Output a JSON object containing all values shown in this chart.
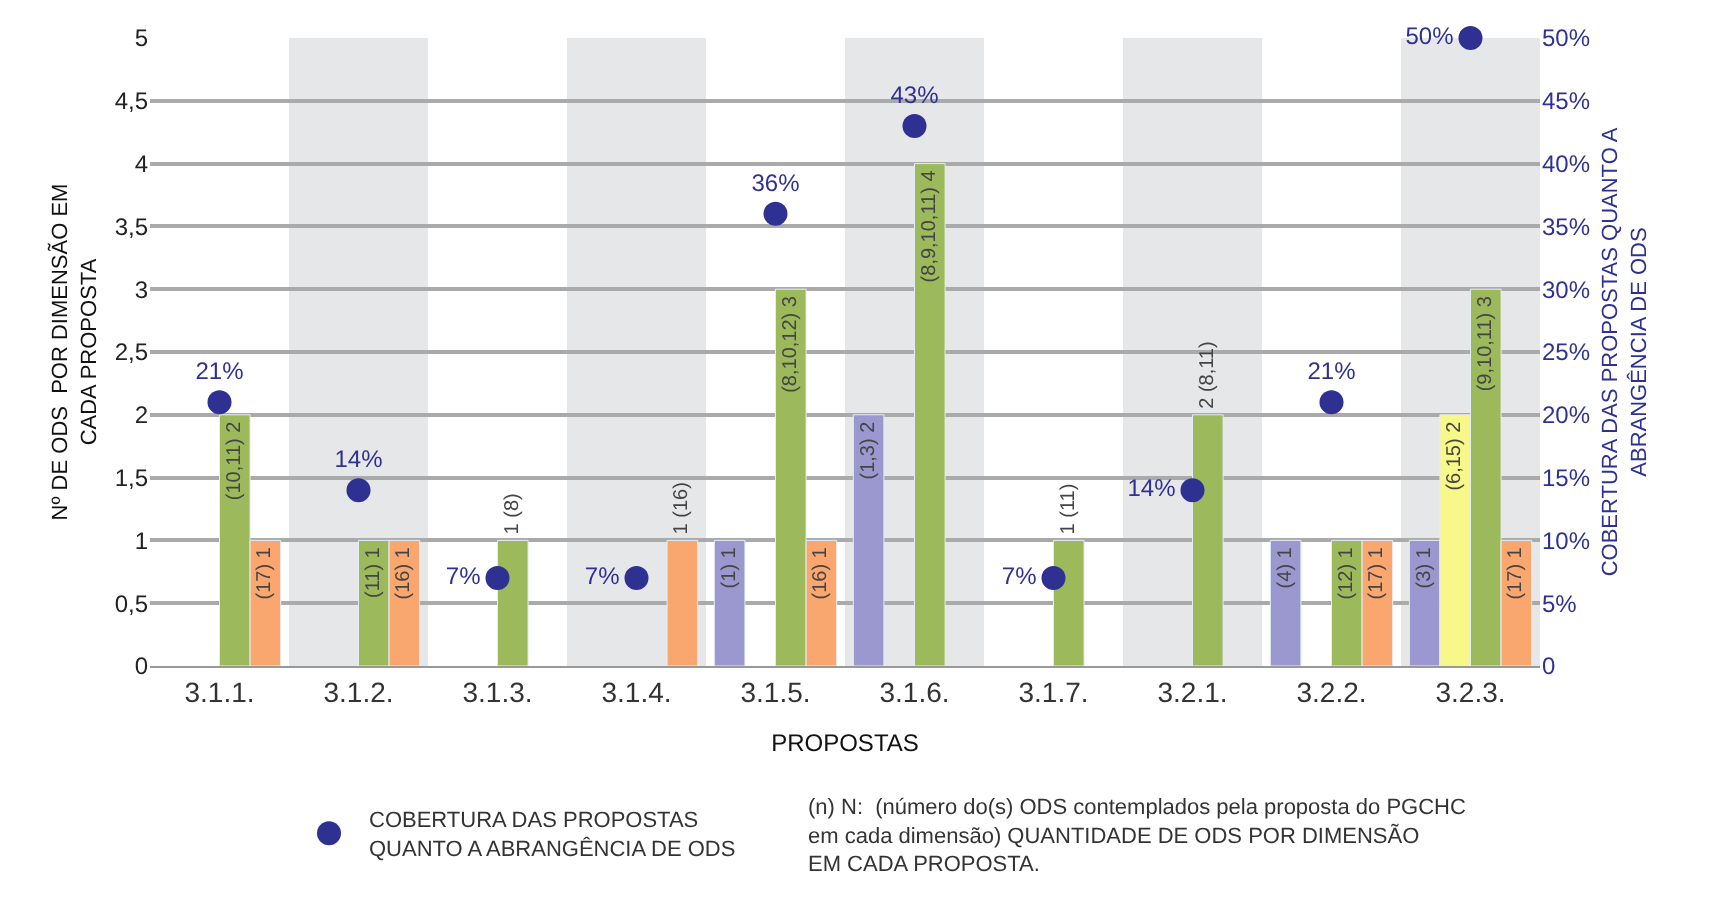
{
  "chart_data": {
    "type": "bar",
    "xlabel": "PROPOSTAS",
    "ylabel": "Nº DE ODS  POR DIMENSÃO EM\nCADA PROPOSTA",
    "y2label": "COBERTURA DAS PROPOSTAS QUANTO A\nABRANGÊNCIA DE ODS",
    "categories": [
      "3.1.1.",
      "3.1.2.",
      "3.1.3.",
      "3.1.4.",
      "3.1.5.",
      "3.1.6.",
      "3.1.7.",
      "3.2.1.",
      "3.2.2.",
      "3.2.3."
    ],
    "series": [
      {
        "color": "#9b97cf",
        "values": [
          null,
          null,
          null,
          null,
          1,
          2,
          null,
          null,
          1,
          1
        ],
        "value_labels": [
          null,
          null,
          null,
          null,
          "(1) 1",
          "(1,3) 2",
          null,
          null,
          "(4) 1",
          "(3) 1"
        ]
      },
      {
        "color": "#f8f78a",
        "values": [
          null,
          null,
          null,
          null,
          null,
          null,
          null,
          null,
          null,
          2
        ],
        "value_labels": [
          null,
          null,
          null,
          null,
          null,
          null,
          null,
          null,
          null,
          "(6,15) 2"
        ]
      },
      {
        "color": "#9cba5b",
        "values": [
          2,
          1,
          1,
          null,
          3,
          4,
          1,
          2,
          1,
          3
        ],
        "value_labels": [
          "(10,11) 2",
          "(11) 1",
          "1 (8)",
          null,
          "(8,10,12) 3",
          "(8,9,10,11) 4",
          "1 (11)",
          "2 (8,11)",
          "(12) 1",
          "(9,10,11) 3"
        ]
      },
      {
        "color": "#f9a66f",
        "values": [
          1,
          1,
          null,
          1,
          1,
          null,
          null,
          null,
          1,
          1
        ],
        "value_labels": [
          "(17) 1",
          "(16) 1",
          null,
          "1 (16)",
          "(16) 1",
          null,
          null,
          null,
          "(17) 1",
          "(17) 1"
        ]
      },
      {
        "type": "scatter",
        "axis": "y2",
        "name": "COBERTURA DAS PROPOSTAS\nQUANTO A ABRANGÊNCIA DE ODS",
        "color": "#2e3192",
        "marker": "circle",
        "values": [
          21,
          14,
          7,
          7,
          36,
          43,
          7,
          14,
          21,
          50
        ],
        "value_labels": [
          "21%",
          "14%",
          "7%",
          "7%",
          "36%",
          "43%",
          "7%",
          "14%",
          "21%",
          "50%"
        ]
      }
    ],
    "ylim": [
      0,
      5
    ],
    "yticks": [
      0,
      {
        "value": 0.5,
        "label": "0,5"
      },
      1,
      {
        "value": 1.5,
        "label": "1,5"
      },
      2,
      {
        "value": 2.5,
        "label": "2,5"
      },
      3,
      {
        "value": 3.5,
        "label": "3,5"
      },
      4,
      {
        "value": 4.5,
        "label": "4,5"
      },
      5
    ],
    "y2lim": [
      0,
      50
    ],
    "y2ticks": [
      0,
      {
        "value": 5,
        "label": "5%"
      },
      {
        "value": 10,
        "label": "10%"
      },
      {
        "value": 15,
        "label": "15%"
      },
      {
        "value": 20,
        "label": "20%"
      },
      {
        "value": 25,
        "label": "25%"
      },
      {
        "value": 30,
        "label": "30%"
      },
      {
        "value": 35,
        "label": "35%"
      },
      {
        "value": 40,
        "label": "40%"
      },
      {
        "value": 45,
        "label": "45%"
      },
      {
        "value": 50,
        "label": "50%"
      }
    ],
    "bands": [
      {
        "axis": "x",
        "from": "3.1.2.",
        "to": "3.1.2.",
        "color": "#e6e7e8"
      },
      {
        "axis": "x",
        "from": "3.1.4.",
        "to": "3.1.4.",
        "color": "#e6e7e8"
      },
      {
        "axis": "x",
        "from": "3.1.6.",
        "to": "3.1.6.",
        "color": "#e6e7e8"
      },
      {
        "axis": "x",
        "from": "3.2.1.",
        "to": "3.2.1.",
        "color": "#e6e7e8"
      },
      {
        "axis": "x",
        "from": "3.2.3.",
        "to": "3.2.3.",
        "color": "#e6e7e8"
      }
    ],
    "annotations": [
      "(n) N:  (número do(s) ODS contemplados pela proposta do PGCHC\nem cada dimensão) QUANTIDADE DE ODS POR DIMENSÃO\nEM CADA PROPOSTA."
    ],
    "grid": "y",
    "legend": "bottom"
  }
}
